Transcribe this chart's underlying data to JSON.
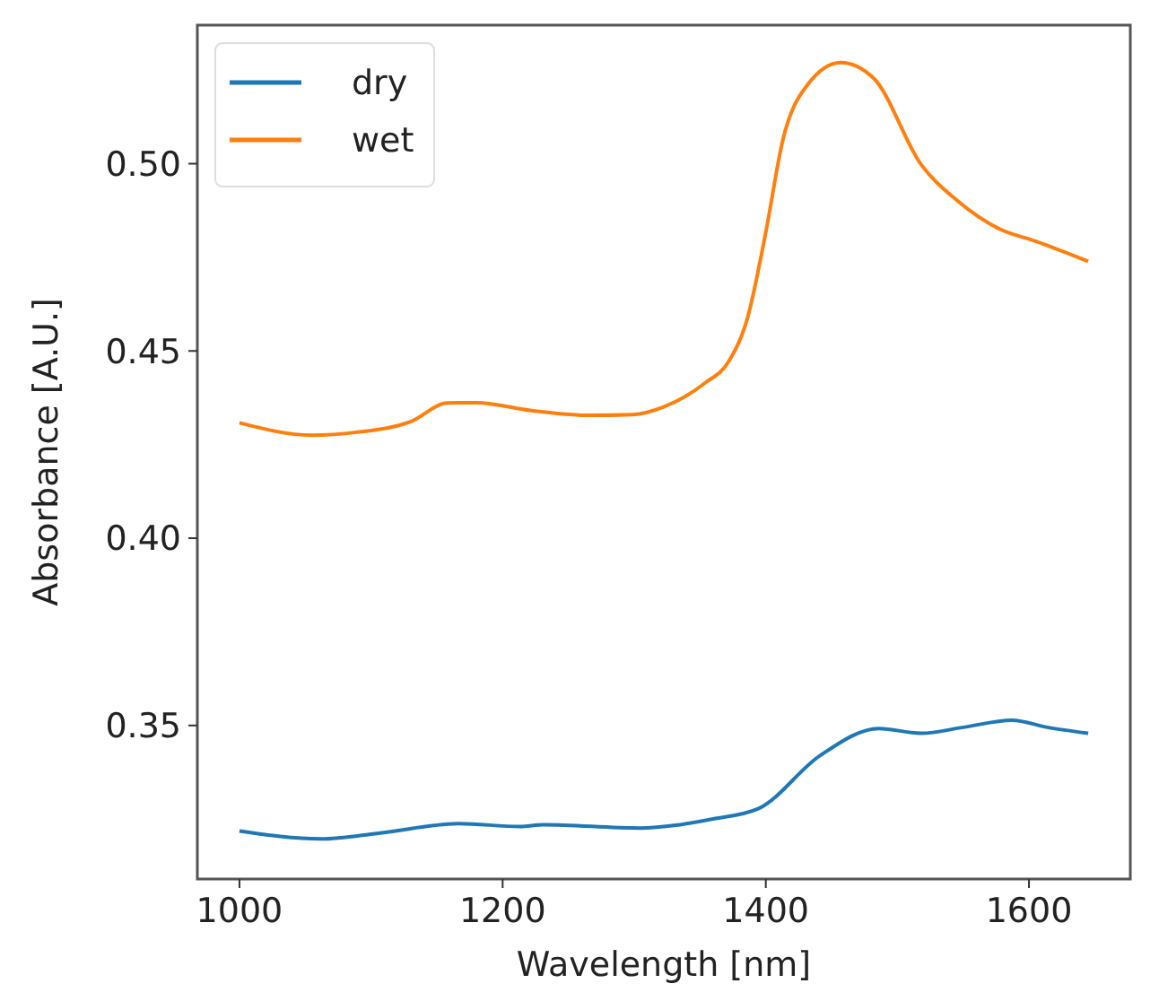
{
  "chart_data": {
    "type": "line",
    "xlabel": "Wavelength [nm]",
    "ylabel": "Absorbance [A.U.]",
    "xlim": [
      968,
      1677
    ],
    "xticks": [
      1000,
      1200,
      1400,
      1600
    ],
    "ylim": [
      0.309,
      0.537
    ],
    "yticks": [
      {
        "value": 0.35,
        "label": "0.35"
      },
      {
        "value": 0.4,
        "label": "0.40"
      },
      {
        "value": 0.45,
        "label": "0.45"
      },
      {
        "value": 0.5,
        "label": "0.50"
      }
    ],
    "grid": false,
    "legend": "top left",
    "marker": "none",
    "line_style": "solid",
    "series": [
      {
        "name": "dry",
        "color": "#1f77b4",
        "x": [
          1000,
          1062,
          1107,
          1167,
          1213,
          1231,
          1304,
          1359,
          1395,
          1441,
          1486,
          1518,
          1550,
          1587,
          1614,
          1645
        ],
        "values": [
          0.3218,
          0.3197,
          0.3213,
          0.3238,
          0.323,
          0.3235,
          0.3226,
          0.325,
          0.3279,
          0.3419,
          0.3492,
          0.3479,
          0.3495,
          0.3514,
          0.3495,
          0.3479
        ]
      },
      {
        "name": "wet",
        "color": "#ff7f0e",
        "x": [
          1000,
          1055,
          1089,
          1130,
          1158,
          1180,
          1222,
          1267,
          1299,
          1322,
          1354,
          1372,
          1386,
          1400,
          1413,
          1432,
          1457,
          1482,
          1518,
          1546,
          1578,
          1605,
          1645
        ],
        "values": [
          0.4308,
          0.4275,
          0.4283,
          0.4311,
          0.4361,
          0.4362,
          0.4341,
          0.4328,
          0.433,
          0.435,
          0.4415,
          0.4473,
          0.4587,
          0.4817,
          0.5064,
          0.5212,
          0.527,
          0.5228,
          0.4998,
          0.49,
          0.4825,
          0.4793,
          0.4739
        ]
      }
    ]
  }
}
